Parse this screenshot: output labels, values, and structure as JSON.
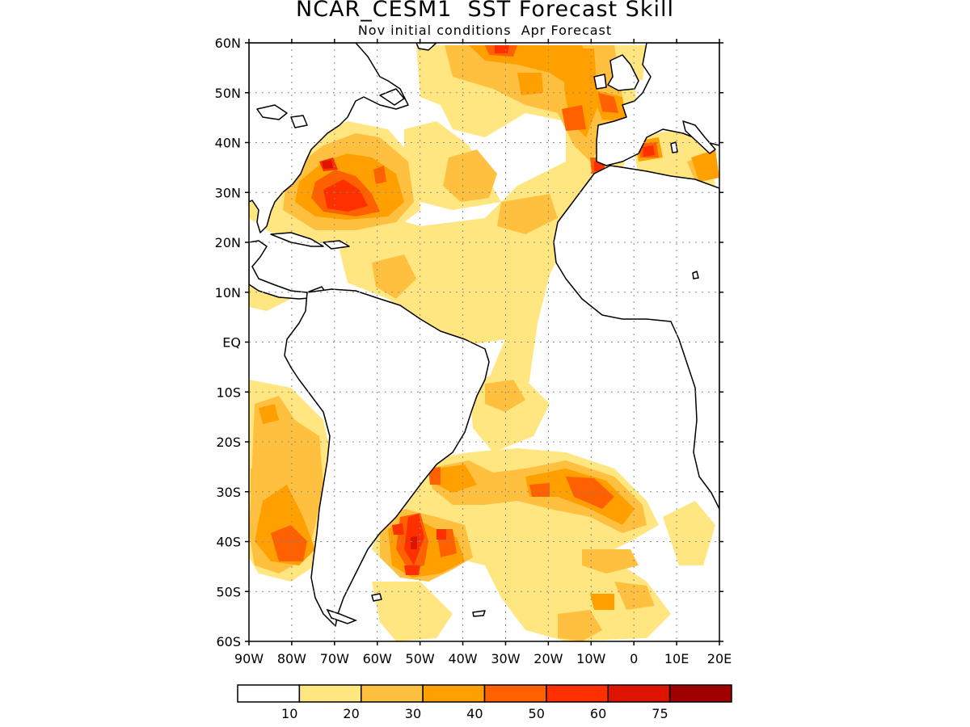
{
  "header": {
    "title": "NCAR_CESM1  SST Forecast Skill",
    "subtitle": "Nov initial conditions  Apr Forecast"
  },
  "map": {
    "lat_range": [
      -60,
      60
    ],
    "lon_range": [
      -90,
      20
    ],
    "lat_labels": [
      "60N",
      "50N",
      "40N",
      "30N",
      "20N",
      "10N",
      "EQ",
      "10S",
      "20S",
      "30S",
      "40S",
      "50S",
      "60S"
    ],
    "lon_labels": [
      "90W",
      "80W",
      "70W",
      "60W",
      "50W",
      "40W",
      "30W",
      "20W",
      "10W",
      "0",
      "10E",
      "20E"
    ],
    "grid": "dotted",
    "land_fill": "#ffffff",
    "coastline_color": "#000000"
  },
  "colorbar": {
    "labels": [
      "10",
      "20",
      "30",
      "40",
      "50",
      "60",
      "75"
    ],
    "colors": [
      "#ffffff",
      "#ffe680",
      "#ffc040",
      "#ffa000",
      "#ff6000",
      "#ff3000",
      "#dc1400",
      "#a00000"
    ]
  }
}
